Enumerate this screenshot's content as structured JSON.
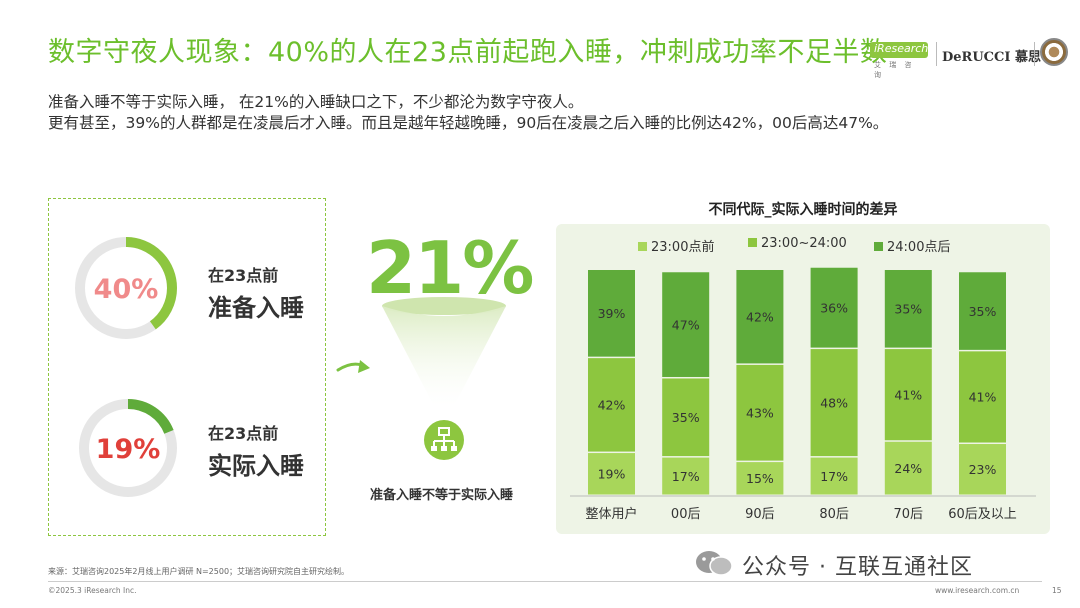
{
  "title": "数字守夜人现象：40%的人在23点前起跑入睡，冲刺成功率不足半数",
  "subtitle_lines": [
    "准备入睡不等于实际入睡， 在21%的入睡缺口之下，不少都沦为数字守夜人。",
    "更有甚至，39%的人群都是在凌晨后才入睡。而且是越年轻越晚睡，90后在凌晨之后入睡的比例达42%，00后高达47%。"
  ],
  "logos": {
    "iresearch": "iResearch",
    "iresearch_sub": "艾 瑞 咨 询",
    "derucci": "DeRUCCI 慕思"
  },
  "rings": [
    {
      "percent_text": "40%",
      "value": 40,
      "label_small": "在23点前",
      "label_big": "准备入睡",
      "percent_color": "#f08a8a"
    },
    {
      "percent_text": "19%",
      "value": 19,
      "label_small": "在23点前",
      "label_big": "实际入睡",
      "percent_color": "#e0403a"
    }
  ],
  "gap": {
    "percent_text": "21%",
    "caption": "准备入睡不等于实际入睡"
  },
  "colors": {
    "accent": "#6cbf2c",
    "series_before_23": "#a8d65a",
    "series_23_24": "#8dc63f",
    "series_after_24": "#5fab3a",
    "panel_bg": "#eef4e6"
  },
  "chart_data": {
    "type": "bar",
    "stacked": true,
    "title": "不同代际_实际入睡时间的差异",
    "categories": [
      "整体用户",
      "00后",
      "90后",
      "80后",
      "70后",
      "60后及以上"
    ],
    "series": [
      {
        "name": "23:00点前",
        "values": [
          19,
          17,
          15,
          17,
          24,
          23
        ],
        "labels": [
          "19%",
          "17%",
          "15%",
          "17%",
          "24%",
          "23%"
        ]
      },
      {
        "name": "23:00~24:00",
        "values": [
          42,
          35,
          43,
          48,
          41,
          41
        ],
        "labels": [
          "42%",
          "35%",
          "43%",
          "48%",
          "41%",
          "41%"
        ]
      },
      {
        "name": "24:00点后",
        "values": [
          39,
          47,
          42,
          36,
          35,
          35
        ],
        "labels": [
          "39%",
          "47%",
          "42%",
          "36%",
          "35%",
          "35%"
        ]
      }
    ],
    "ylim": [
      0,
      100
    ],
    "legend_position": "top",
    "grid": false
  },
  "footer": {
    "source": "来源：艾瑞咨询2025年2月线上用户调研 N=2500；艾瑞咨询研究院自主研究绘制。",
    "copyright": "©2025.3 iResearch Inc.",
    "url": "www.iresearch.com.cn",
    "page": "15"
  },
  "watermark": "公众号 · 互联互通社区"
}
